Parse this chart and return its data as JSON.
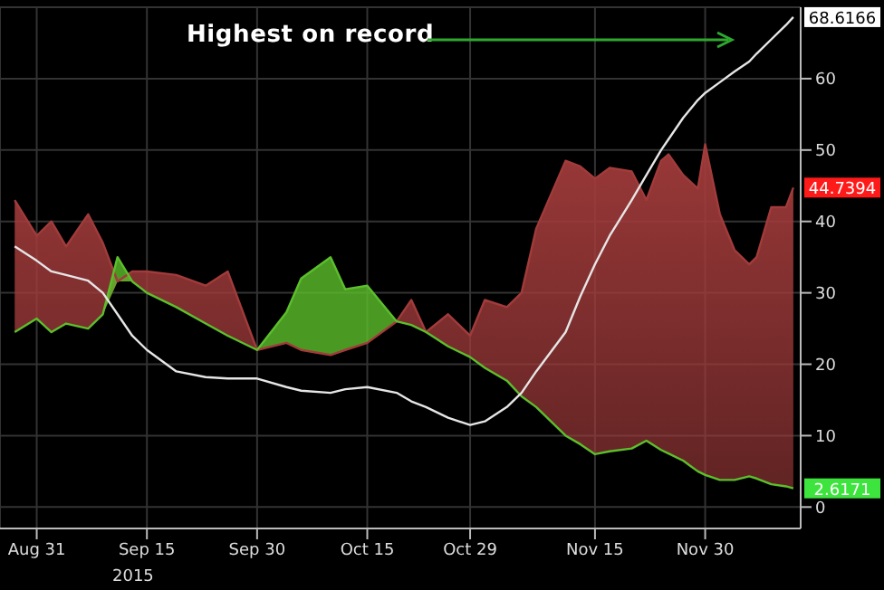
{
  "chart_data": {
    "type": "line",
    "x": [
      "2015-08-28",
      "2015-08-31",
      "2015-09-02",
      "2015-09-04",
      "2015-09-07",
      "2015-09-09",
      "2015-09-11",
      "2015-09-13",
      "2015-09-15",
      "2015-09-19",
      "2015-09-23",
      "2015-09-26",
      "2015-09-30",
      "2015-10-04",
      "2015-10-06",
      "2015-10-10",
      "2015-10-12",
      "2015-10-15",
      "2015-10-19",
      "2015-10-21",
      "2015-10-23",
      "2015-10-26",
      "2015-10-29",
      "2015-10-31",
      "2015-11-03",
      "2015-11-05",
      "2015-11-07",
      "2015-11-11",
      "2015-11-13",
      "2015-11-15",
      "2015-11-17",
      "2015-11-20",
      "2015-11-22",
      "2015-11-24",
      "2015-11-25",
      "2015-11-27",
      "2015-11-29",
      "2015-11-30",
      "2015-12-02",
      "2015-12-04",
      "2015-12-06",
      "2015-12-07",
      "2015-12-09",
      "2015-12-11",
      "2015-12-12"
    ],
    "series": [
      {
        "color": "#a23b3b",
        "values": [
          43,
          38,
          40,
          36.5,
          41,
          37,
          31.6,
          33,
          33,
          32.5,
          31,
          33,
          22,
          23,
          22,
          21.3,
          22,
          23,
          26,
          29,
          24.5,
          27,
          24,
          29,
          28,
          30,
          39,
          48.5,
          47.7,
          46,
          47.5,
          47,
          43,
          48.5,
          49.4,
          46.5,
          44.6,
          50.8,
          41,
          36,
          34,
          35,
          42,
          42,
          44.7394
        ],
        "value_labels": [
          null,
          null,
          null,
          null,
          null,
          null,
          null,
          null,
          null,
          null,
          null,
          null,
          null,
          null,
          null,
          null,
          null,
          null,
          null,
          null,
          null,
          null,
          null,
          null,
          null,
          null,
          null,
          null,
          null,
          null,
          null,
          null,
          null,
          null,
          null,
          null,
          null,
          null,
          null,
          null,
          null,
          null,
          null,
          null,
          "44.7394"
        ],
        "lower": [
          24.5,
          26.4,
          24.5,
          25.7,
          25,
          27,
          31.6,
          31.6,
          30,
          28,
          25.7,
          24,
          22,
          23,
          22,
          21.3,
          22,
          23,
          26,
          25.5,
          24.5,
          22.5,
          21,
          19.5,
          17.7,
          15.5,
          14,
          10,
          8.8,
          7.4,
          7.8,
          8.2,
          9.3,
          8,
          7.5,
          6.5,
          5,
          4.5,
          3.8,
          3.8,
          4.3,
          4,
          3.2,
          2.9,
          2.6171
        ],
        "upper": [
          43,
          38,
          40,
          36.5,
          41,
          37,
          31.6,
          33,
          33,
          32.5,
          31,
          33,
          22,
          23,
          22,
          21.3,
          22,
          23,
          26,
          29,
          24.5,
          27,
          24,
          29,
          28,
          30,
          39,
          48.5,
          47.7,
          46,
          47.5,
          47,
          43,
          48.5,
          49.4,
          46.5,
          44.6,
          50.8,
          41,
          36,
          34,
          35,
          42,
          42,
          44.7394
        ]
      },
      {
        "color": "#5cbf2c",
        "values": [
          24.5,
          26.4,
          24.5,
          25.7,
          25,
          27,
          35,
          31.6,
          30,
          28,
          25.7,
          24,
          22,
          27.3,
          32,
          35,
          30.5,
          31,
          26,
          25.5,
          24.5,
          22.5,
          21,
          19.5,
          17.7,
          15.5,
          14,
          10,
          8.8,
          7.4,
          7.8,
          8.2,
          9.3,
          8,
          7.5,
          6.5,
          5,
          4.5,
          3.8,
          3.8,
          4.3,
          4,
          3.2,
          2.9,
          2.6171
        ],
        "value_labels": [
          null,
          null,
          null,
          null,
          null,
          null,
          null,
          null,
          null,
          null,
          null,
          null,
          null,
          null,
          null,
          null,
          null,
          null,
          null,
          null,
          null,
          null,
          null,
          null,
          null,
          null,
          null,
          null,
          null,
          null,
          null,
          null,
          null,
          null,
          null,
          null,
          null,
          null,
          null,
          null,
          null,
          null,
          null,
          null,
          "2.6171"
        ],
        "lower": [
          24.5,
          26.4,
          24.5,
          25.7,
          25,
          27,
          31.6,
          31.6,
          30,
          28,
          25.7,
          24,
          22,
          23,
          22,
          21.3,
          22,
          23,
          26,
          25.5,
          24.5,
          22.5,
          21,
          19.5,
          17.7,
          15.5,
          14,
          10,
          8.8,
          7.4,
          7.8,
          8.2,
          9.3,
          8,
          7.5,
          6.5,
          5,
          4.5,
          3.8,
          3.8,
          4.3,
          4,
          3.2,
          2.9,
          2.6171
        ],
        "upper": [
          24.5,
          26.4,
          24.5,
          25.7,
          25,
          27,
          35,
          31.6,
          30,
          28,
          25.7,
          24,
          22,
          27.3,
          32,
          35,
          30.5,
          31,
          26,
          25.5,
          24.5,
          22.5,
          21,
          19.5,
          17.7,
          15.5,
          14,
          10,
          8.8,
          7.4,
          7.8,
          8.2,
          9.3,
          8,
          7.5,
          6.5,
          5,
          4.5,
          3.8,
          3.8,
          4.3,
          4,
          3.2,
          2.9,
          2.6171
        ]
      },
      {
        "color": "#e6e6e6",
        "values": [
          36.5,
          34.5,
          33,
          32.5,
          31.7,
          30,
          27,
          24,
          22,
          19,
          18.2,
          18,
          18,
          16.8,
          16.3,
          16,
          16.5,
          16.8,
          16,
          14.8,
          14,
          12.5,
          11.5,
          12,
          14,
          16,
          19,
          24.5,
          29.5,
          34,
          38,
          43,
          46.5,
          50,
          51.5,
          54.5,
          57,
          58,
          59.5,
          61,
          62.4,
          63.5,
          65.5,
          67.5,
          68.6166
        ],
        "value_labels": [
          null,
          null,
          null,
          null,
          null,
          null,
          null,
          null,
          null,
          null,
          null,
          null,
          null,
          null,
          null,
          null,
          null,
          null,
          null,
          null,
          null,
          null,
          null,
          null,
          null,
          null,
          null,
          null,
          null,
          null,
          null,
          null,
          null,
          null,
          null,
          null,
          null,
          null,
          null,
          null,
          null,
          null,
          null,
          null,
          "68.6166"
        ]
      }
    ],
    "xlim": [
      "2015-08-26",
      "2015-12-13"
    ],
    "xticks": [
      {
        "value": "2015-08-31",
        "label": "Aug 31"
      },
      {
        "value": "2015-09-15",
        "label": "Sep 15"
      },
      {
        "value": "2015-09-30",
        "label": "Sep 30"
      },
      {
        "value": "2015-10-15",
        "label": "Oct 15"
      },
      {
        "value": "2015-10-29",
        "label": "Oct 29"
      },
      {
        "value": "2015-11-15",
        "label": "Nov 15"
      },
      {
        "value": "2015-11-30",
        "label": "Nov 30"
      }
    ],
    "ylim": [
      -3,
      70
    ],
    "yticks": [
      0,
      10,
      20,
      30,
      40,
      50,
      60
    ],
    "grid": true,
    "annotations": [
      "Highest on record",
      "2015"
    ]
  }
}
